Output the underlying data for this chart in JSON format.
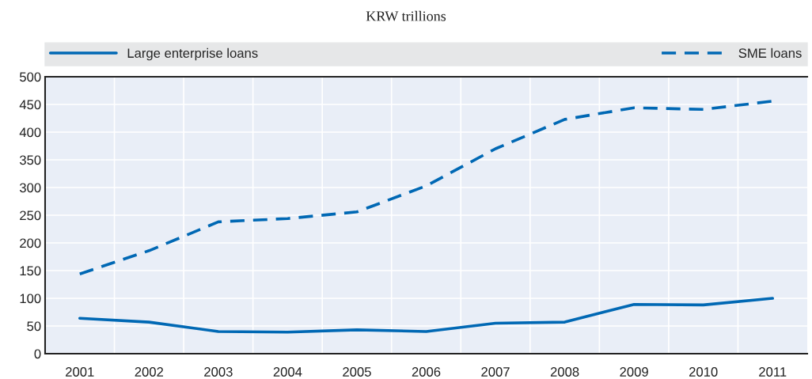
{
  "chart_data": {
    "type": "line",
    "subtitle": "KRW trillions",
    "categories": [
      "2001",
      "2002",
      "2003",
      "2004",
      "2005",
      "2006",
      "2007",
      "2008",
      "2009",
      "2010",
      "2011"
    ],
    "series": [
      {
        "name": "Large enterprise loans",
        "color": "#0068b4",
        "line_style": "solid",
        "values": [
          64,
          57,
          40,
          39,
          43,
          40,
          55,
          57,
          89,
          88,
          100
        ]
      },
      {
        "name": "SME loans",
        "color": "#0068b4",
        "line_style": "dashed",
        "values": [
          144,
          186,
          238,
          244,
          256,
          303,
          370,
          423,
          444,
          441,
          456
        ]
      }
    ],
    "ylim": [
      0,
      500
    ],
    "yticks": [
      0,
      50,
      100,
      150,
      200,
      250,
      300,
      350,
      400,
      450,
      500
    ],
    "grid": true,
    "legend": "top",
    "marker": "none"
  }
}
